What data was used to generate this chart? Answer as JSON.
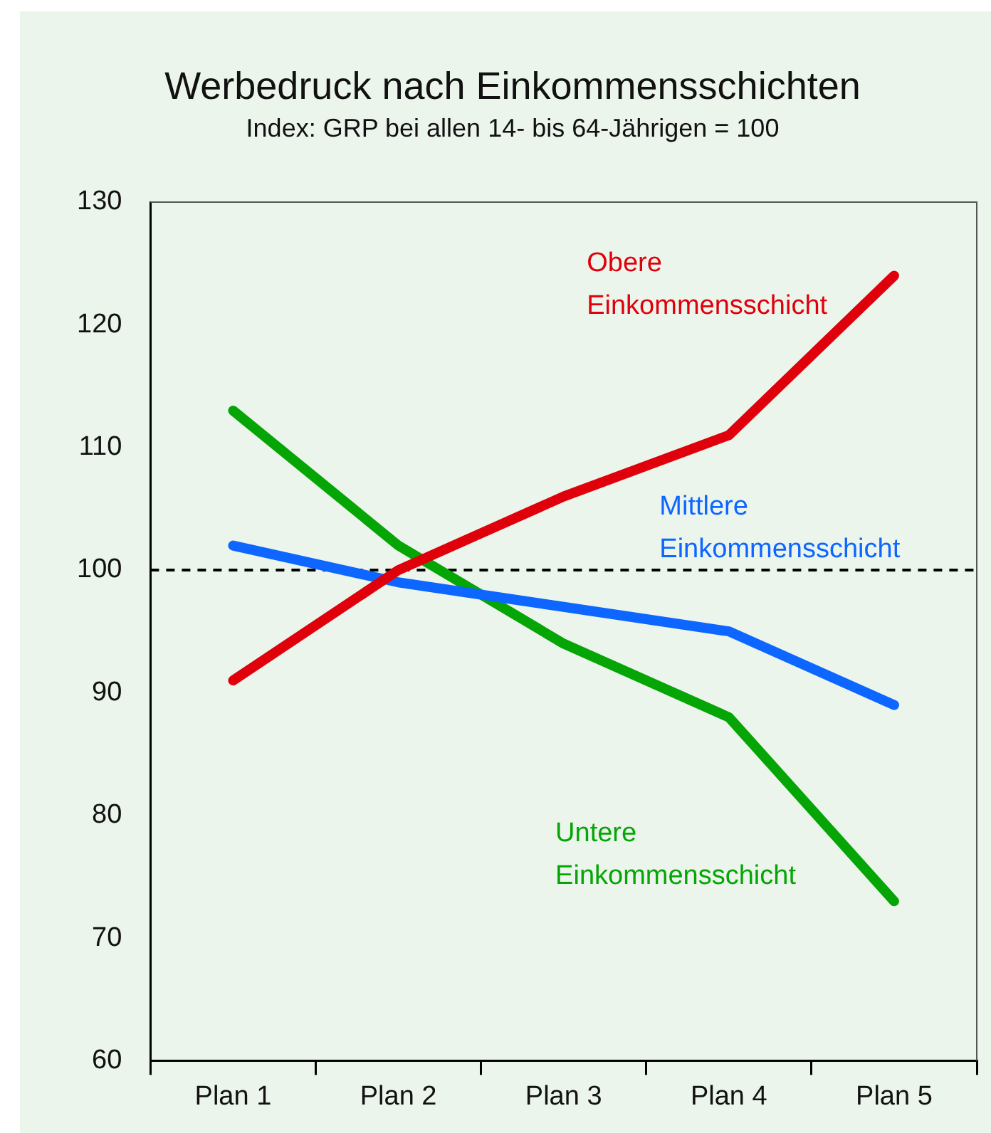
{
  "chart_data": {
    "type": "line",
    "title": "Werbedruck nach Einkommensschichten",
    "subtitle": "Index: GRP bei allen 14- bis 64-Jährigen = 100",
    "categories": [
      "Plan 1",
      "Plan 2",
      "Plan 3",
      "Plan 4",
      "Plan 5"
    ],
    "series": [
      {
        "name": "Obere Einkommensschicht",
        "color": "#e0000b",
        "values": [
          91,
          100,
          106,
          111,
          124
        ]
      },
      {
        "name": "Mittlere Einkommensschicht",
        "color": "#0d66ff",
        "values": [
          102,
          99,
          97,
          95,
          89
        ]
      },
      {
        "name": "Untere Einkommensschicht",
        "color": "#05a505",
        "values": [
          113,
          102,
          94,
          88,
          73
        ]
      }
    ],
    "ylim": [
      60,
      130
    ],
    "yticks": [
      60,
      70,
      80,
      90,
      100,
      110,
      120,
      130
    ],
    "ref_lines": [
      {
        "axis": "y",
        "value": 100,
        "color": "#000000",
        "line_style": "dashed"
      }
    ],
    "grid": false,
    "legend": false,
    "marker": "none",
    "line_style": "solid"
  }
}
